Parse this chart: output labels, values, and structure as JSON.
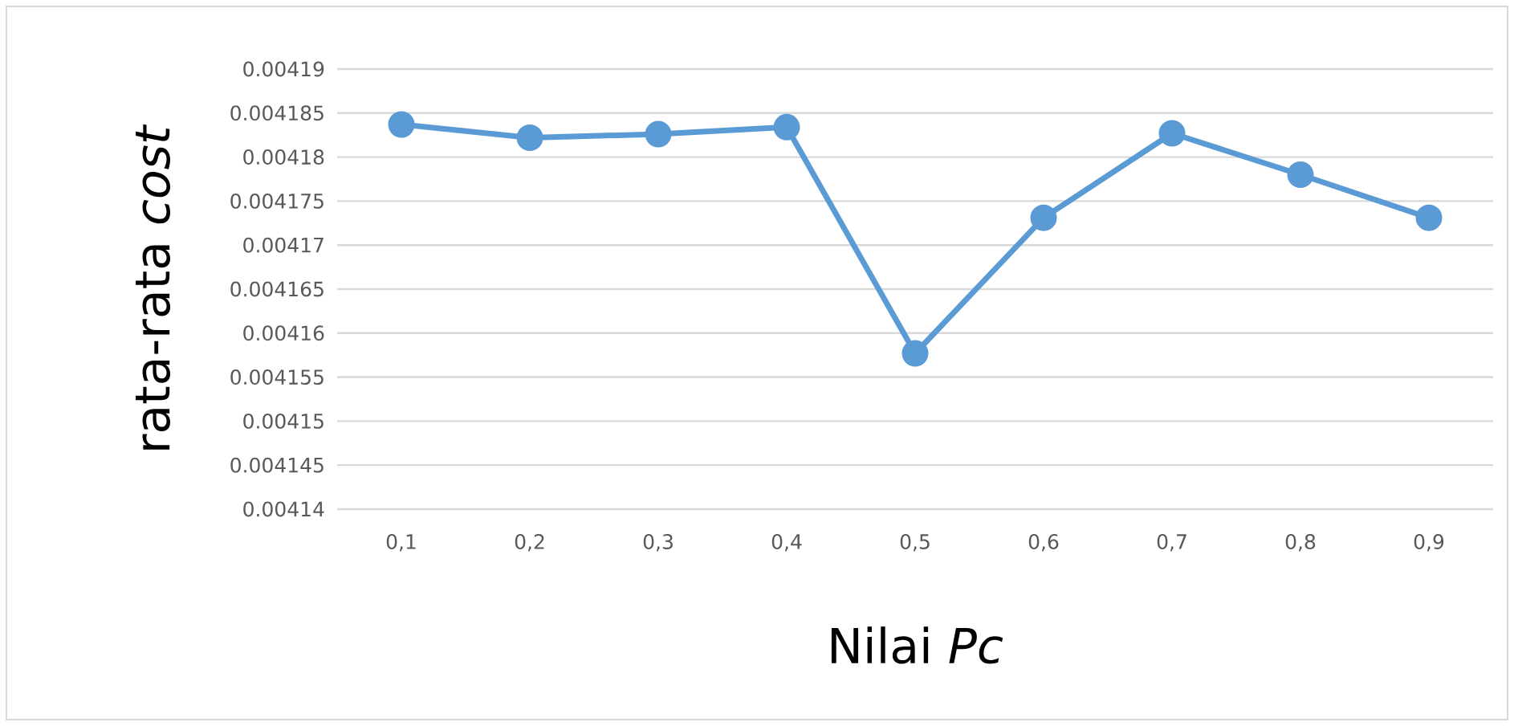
{
  "chart_data": {
    "type": "line",
    "xlabel": "Nilai *Pc*",
    "ylabel": "rata-rata *cost*",
    "categories": [
      "0,1",
      "0,2",
      "0,3",
      "0,4",
      "0,5",
      "0,6",
      "0,7",
      "0,8",
      "0,9"
    ],
    "series": [
      {
        "color": "#5b9bd5",
        "values": [
          0.0041837,
          0.0041822,
          0.0041826,
          0.0041834,
          0.0041577,
          0.0041731,
          0.0041827,
          0.004178,
          0.0041731
        ]
      }
    ],
    "ylim": [
      0.00414,
      0.00419
    ],
    "yticks": [
      0.00414,
      0.004145,
      0.00415,
      0.004155,
      0.00416,
      0.004165,
      0.00417,
      0.004175,
      0.00418,
      0.004185,
      0.00419
    ],
    "grid": "y",
    "marker": "circle",
    "line_style": "solid"
  }
}
